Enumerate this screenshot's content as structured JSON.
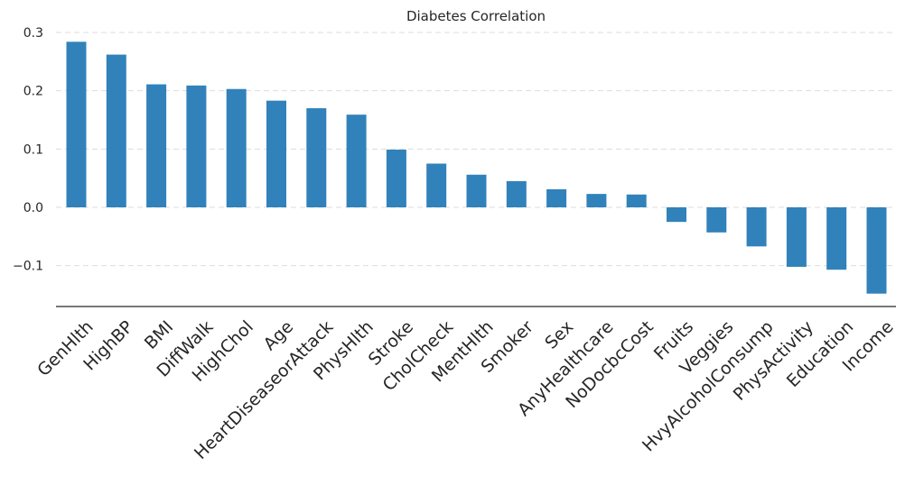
{
  "chart_data": {
    "type": "bar",
    "title": "Diabetes Correlation",
    "xlabel": "",
    "ylabel": "",
    "categories": [
      "GenHlth",
      "HighBP",
      "BMI",
      "DiffWalk",
      "HighChol",
      "Age",
      "HeartDiseaseorAttack",
      "PhysHlth",
      "Stroke",
      "CholCheck",
      "MentHlth",
      "Smoker",
      "Sex",
      "AnyHealthcare",
      "NoDocbcCost",
      "Fruits",
      "Veggies",
      "HvyAlcoholConsump",
      "PhysActivity",
      "Education",
      "Income"
    ],
    "values": [
      0.284,
      0.262,
      0.211,
      0.209,
      0.203,
      0.183,
      0.17,
      0.159,
      0.099,
      0.075,
      0.056,
      0.045,
      0.031,
      0.023,
      0.022,
      -0.025,
      -0.043,
      -0.067,
      -0.102,
      -0.107,
      -0.148
    ],
    "yticks": [
      "0.3",
      "0.2",
      "0.1",
      "0.0",
      "−0.1"
    ],
    "ylim": [
      -0.17,
      0.3
    ],
    "grid": "y-dashed",
    "bar_color": "#1f77b4"
  }
}
